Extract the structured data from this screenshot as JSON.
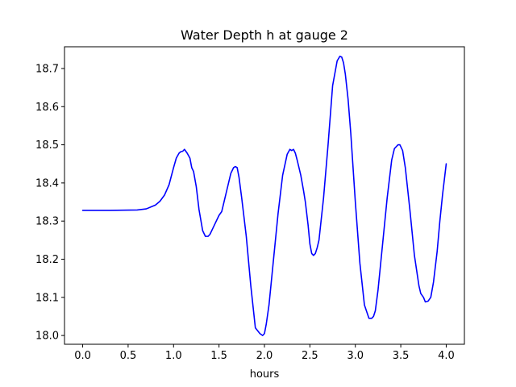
{
  "chart_data": {
    "type": "line",
    "title": "Water Depth h at gauge 2",
    "xlabel": "hours",
    "ylabel": "",
    "xlim": [
      -0.2,
      4.2
    ],
    "ylim": [
      17.977,
      18.757
    ],
    "xticks": [
      0.0,
      0.5,
      1.0,
      1.5,
      2.0,
      2.5,
      3.0,
      3.5,
      4.0
    ],
    "xtick_labels": [
      "0.0",
      "0.5",
      "1.0",
      "1.5",
      "2.0",
      "2.5",
      "3.0",
      "3.5",
      "4.0"
    ],
    "yticks": [
      18.0,
      18.1,
      18.2,
      18.3,
      18.4,
      18.5,
      18.6,
      18.7
    ],
    "ytick_labels": [
      "18.0",
      "18.1",
      "18.2",
      "18.3",
      "18.4",
      "18.5",
      "18.6",
      "18.7"
    ],
    "grid": false,
    "series": [
      {
        "color": "#0000ff",
        "x": [
          0.0,
          0.3,
          0.6,
          0.7,
          0.8,
          0.85,
          0.9,
          0.95,
          1.0,
          1.03,
          1.06,
          1.08,
          1.1,
          1.12,
          1.15,
          1.18,
          1.2,
          1.22,
          1.25,
          1.28,
          1.32,
          1.35,
          1.38,
          1.4,
          1.43,
          1.46,
          1.5,
          1.53,
          1.56,
          1.6,
          1.63,
          1.66,
          1.68,
          1.7,
          1.72,
          1.75,
          1.8,
          1.85,
          1.9,
          1.95,
          1.98,
          2.0,
          2.02,
          2.05,
          2.1,
          2.15,
          2.2,
          2.25,
          2.28,
          2.3,
          2.32,
          2.34,
          2.36,
          2.4,
          2.43,
          2.45,
          2.48,
          2.5,
          2.52,
          2.54,
          2.56,
          2.58,
          2.6,
          2.65,
          2.7,
          2.75,
          2.8,
          2.83,
          2.85,
          2.87,
          2.89,
          2.92,
          2.95,
          3.0,
          3.05,
          3.1,
          3.15,
          3.18,
          3.2,
          3.22,
          3.25,
          3.3,
          3.35,
          3.4,
          3.43,
          3.45,
          3.47,
          3.49,
          3.52,
          3.55,
          3.6,
          3.65,
          3.7,
          3.72,
          3.75,
          3.77,
          3.8,
          3.83,
          3.86,
          3.9,
          3.93,
          3.96,
          4.0
        ],
        "y": [
          18.328,
          18.328,
          18.329,
          18.332,
          18.342,
          18.352,
          18.368,
          18.395,
          18.44,
          18.465,
          18.478,
          18.482,
          18.483,
          18.488,
          18.478,
          18.465,
          18.44,
          18.43,
          18.39,
          18.33,
          18.275,
          18.26,
          18.26,
          18.265,
          18.28,
          18.295,
          18.315,
          18.325,
          18.355,
          18.395,
          18.425,
          18.44,
          18.443,
          18.44,
          18.415,
          18.36,
          18.26,
          18.13,
          18.02,
          18.005,
          18.0,
          18.005,
          18.03,
          18.08,
          18.2,
          18.32,
          18.42,
          18.475,
          18.488,
          18.485,
          18.488,
          18.478,
          18.46,
          18.42,
          18.38,
          18.35,
          18.29,
          18.24,
          18.215,
          18.21,
          18.215,
          18.23,
          18.25,
          18.36,
          18.5,
          18.655,
          18.72,
          18.732,
          18.73,
          18.715,
          18.685,
          18.62,
          18.53,
          18.35,
          18.19,
          18.08,
          18.045,
          18.045,
          18.05,
          18.065,
          18.12,
          18.24,
          18.36,
          18.46,
          18.49,
          18.495,
          18.5,
          18.5,
          18.485,
          18.44,
          18.33,
          18.21,
          18.13,
          18.11,
          18.1,
          18.088,
          18.09,
          18.1,
          18.14,
          18.22,
          18.3,
          18.37,
          18.45
        ]
      }
    ]
  }
}
